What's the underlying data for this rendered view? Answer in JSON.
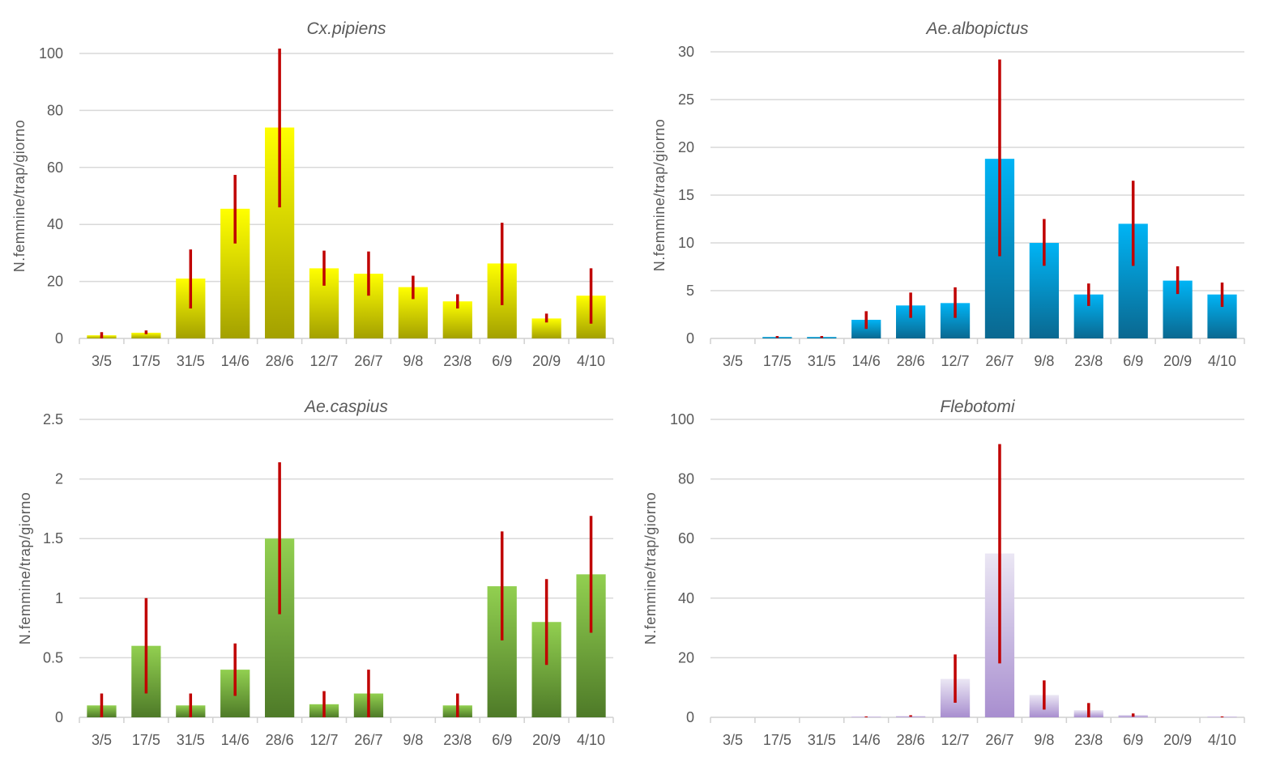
{
  "chart_data": [
    {
      "type": "bar",
      "id": "cx-pipiens",
      "title": "Cx.pipiens",
      "xlabel": "",
      "ylabel": "N.femmine/trap/giorno",
      "categories": [
        "3/5",
        "17/5",
        "31/5",
        "14/6",
        "28/6",
        "12/7",
        "26/7",
        "9/8",
        "23/8",
        "6/9",
        "20/9",
        "4/10"
      ],
      "values": [
        1.1,
        2.0,
        21.0,
        45.5,
        74.0,
        24.6,
        22.7,
        18.0,
        13.0,
        26.3,
        7.0,
        15.0
      ],
      "error_low": [
        0,
        1.5,
        10.5,
        33.3,
        46.0,
        18.5,
        15.0,
        13.8,
        10.5,
        11.7,
        5.6,
        5.2
      ],
      "error_high": [
        2.2,
        2.8,
        31.2,
        57.4,
        101.7,
        30.8,
        30.5,
        22.0,
        15.5,
        40.6,
        8.7,
        24.6
      ],
      "yticks": [
        0,
        20,
        40,
        60,
        80,
        100
      ],
      "ylim": [
        0,
        100
      ],
      "grid": true,
      "colors": {
        "bar_top": "#ffff00",
        "bar_bottom": "#a3a000",
        "error": "#c00000"
      }
    },
    {
      "type": "bar",
      "id": "ae-albopictus",
      "title": "Ae.albopictus",
      "xlabel": "",
      "ylabel": "N.femmine/trap/giorno",
      "categories": [
        "3/5",
        "17/5",
        "31/5",
        "14/6",
        "28/6",
        "12/7",
        "26/7",
        "9/8",
        "23/8",
        "6/9",
        "20/9",
        "4/10"
      ],
      "values": [
        0,
        0.15,
        0.15,
        1.95,
        3.45,
        3.7,
        18.8,
        10.0,
        4.6,
        12.0,
        6.05,
        4.6
      ],
      "error_low": [
        0,
        0.05,
        0.05,
        1.0,
        2.15,
        2.15,
        8.6,
        7.6,
        3.4,
        7.6,
        4.65,
        3.3
      ],
      "error_high": [
        0,
        0.25,
        0.25,
        2.85,
        4.8,
        5.35,
        29.2,
        12.5,
        5.75,
        16.5,
        7.55,
        5.85
      ],
      "yticks": [
        0,
        5,
        10,
        15,
        20,
        25,
        30
      ],
      "ylim": [
        0,
        30
      ],
      "grid": true,
      "colors": {
        "bar_top": "#00b4f5",
        "bar_bottom": "#0a6890",
        "error": "#c00000"
      }
    },
    {
      "type": "bar",
      "id": "ae-caspius",
      "title": "Ae.caspius",
      "xlabel": "",
      "ylabel": "N.femmine/trap/giorno",
      "categories": [
        "3/5",
        "17/5",
        "31/5",
        "14/6",
        "28/6",
        "12/7",
        "26/7",
        "9/8",
        "23/8",
        "6/9",
        "20/9",
        "4/10"
      ],
      "values": [
        0.1,
        0.6,
        0.1,
        0.4,
        1.5,
        0.11,
        0.2,
        0,
        0.1,
        1.1,
        0.8,
        1.2
      ],
      "error_low": [
        0,
        0.2,
        0,
        0.18,
        0.865,
        0,
        0,
        0,
        0,
        0.645,
        0.44,
        0.71
      ],
      "error_high": [
        0.2,
        1.0,
        0.2,
        0.62,
        2.14,
        0.22,
        0.4,
        0,
        0.2,
        1.56,
        1.16,
        1.69
      ],
      "yticks": [
        0,
        0.5,
        1,
        1.5,
        2,
        2.5
      ],
      "ylim": [
        0,
        2.5
      ],
      "grid": true,
      "colors": {
        "bar_top": "#92d050",
        "bar_bottom": "#4e7a28",
        "error": "#c00000"
      }
    },
    {
      "type": "bar",
      "id": "flebotomi",
      "title": "Flebotomi",
      "xlabel": "",
      "ylabel": "N.femmine/trap/giorno",
      "categories": [
        "3/5",
        "17/5",
        "31/5",
        "14/6",
        "28/6",
        "12/7",
        "26/7",
        "9/8",
        "23/8",
        "6/9",
        "20/9",
        "4/10"
      ],
      "values": [
        0,
        0,
        0,
        0.1,
        0.45,
        12.9,
        55.0,
        7.5,
        2.4,
        0.8,
        0,
        0.1
      ],
      "error_low": [
        0,
        0,
        0,
        0,
        0.2,
        4.9,
        18.1,
        2.6,
        0,
        0.2,
        0,
        0
      ],
      "error_high": [
        0,
        0,
        0,
        0.3,
        0.7,
        21.1,
        91.7,
        12.4,
        4.8,
        1.3,
        0,
        0.3
      ],
      "yticks": [
        0,
        20,
        40,
        60,
        80,
        100
      ],
      "ylim": [
        0,
        100
      ],
      "grid": true,
      "colors": {
        "bar_top": "#ebe7f4",
        "bar_bottom": "#a88ecf",
        "error": "#c00000"
      }
    }
  ]
}
